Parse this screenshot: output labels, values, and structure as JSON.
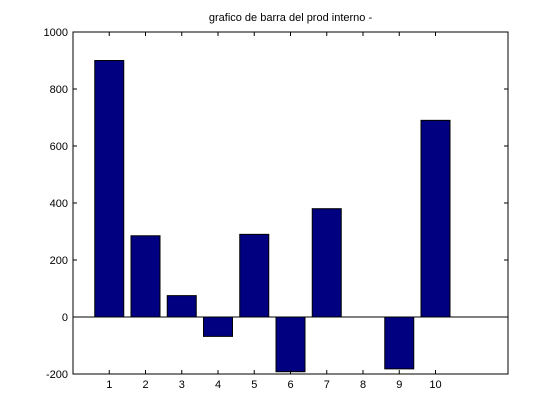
{
  "chart_data": {
    "type": "bar",
    "title": "grafico de barra del prod interno -",
    "xlabel": "",
    "ylabel": "",
    "categories": [
      "1",
      "2",
      "3",
      "4",
      "5",
      "6",
      "7",
      "8",
      "9",
      "10"
    ],
    "x": [
      1,
      2,
      3,
      4,
      5,
      6,
      7,
      8,
      9,
      10
    ],
    "values": [
      900,
      285,
      75,
      -68,
      290,
      -192,
      380,
      0,
      -182,
      690
    ],
    "xlim": [
      0,
      12
    ],
    "ylim": [
      -200,
      1000
    ],
    "yticks": [
      -200,
      0,
      200,
      400,
      600,
      800,
      1000
    ],
    "ytick_labels": [
      "-200",
      "0",
      "200",
      "400",
      "600",
      "800",
      "1000"
    ],
    "bar_color": "#000080",
    "grid": false,
    "legend": "none"
  }
}
